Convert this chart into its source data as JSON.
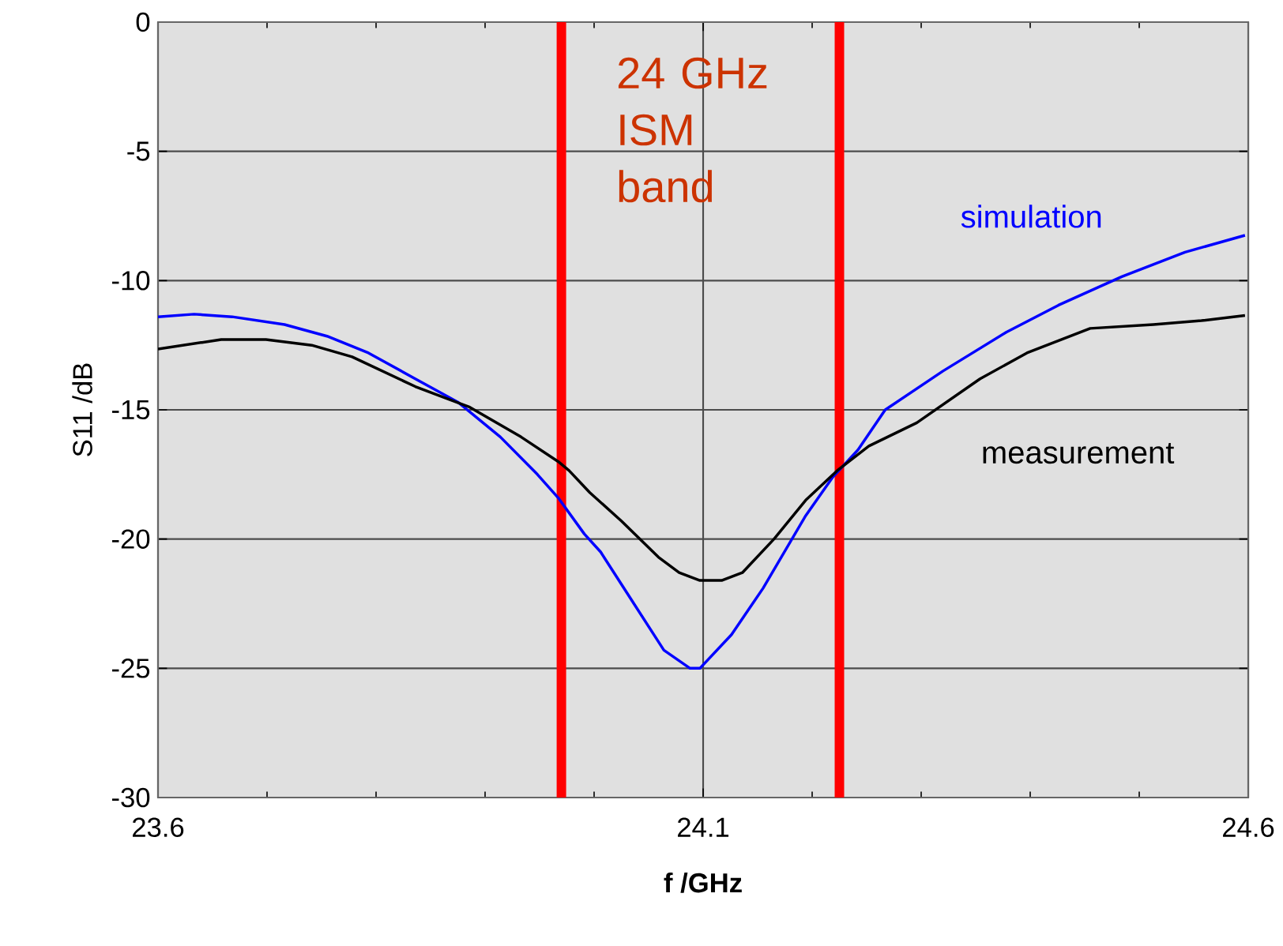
{
  "chart_data": {
    "type": "line",
    "xlabel": "f /GHz",
    "ylabel": "S11 /dB",
    "xlim": [
      23.6,
      24.6
    ],
    "xticks": [
      23.6,
      24.1,
      24.6
    ],
    "ylim": [
      -30,
      0
    ],
    "yticks": [
      -30,
      -25,
      -20,
      -15,
      -10,
      -5,
      0
    ],
    "grid": true,
    "legend": false,
    "marker": "none",
    "line_style": "solid",
    "series": [
      {
        "name": "simulation",
        "color": "#0000ff",
        "x": [
          23.6,
          23.633,
          23.668,
          23.716,
          23.755,
          23.793,
          23.836,
          23.875,
          23.914,
          23.948,
          23.967,
          23.991,
          24.006,
          24.035,
          24.064,
          24.088,
          24.097,
          24.126,
          24.155,
          24.194,
          24.219,
          24.242,
          24.267,
          24.32,
          24.378,
          24.426,
          24.484,
          24.542,
          24.597
        ],
        "values": [
          -11.4,
          -11.3,
          -11.4,
          -11.7,
          -12.15,
          -12.8,
          -13.8,
          -14.7,
          -16.05,
          -17.5,
          -18.4,
          -19.8,
          -20.5,
          -22.4,
          -24.3,
          -25.0,
          -25.0,
          -23.7,
          -21.9,
          -19.1,
          -17.6,
          -16.55,
          -15.0,
          -13.5,
          -12.0,
          -10.95,
          -9.85,
          -8.9,
          -8.25
        ]
      },
      {
        "name": "measurement",
        "color": "#000000",
        "x": [
          23.6,
          23.658,
          23.699,
          23.741,
          23.778,
          23.836,
          23.886,
          23.933,
          23.967,
          23.977,
          23.996,
          24.025,
          24.059,
          24.078,
          24.097,
          24.117,
          24.136,
          24.165,
          24.194,
          24.223,
          24.252,
          24.296,
          24.354,
          24.397,
          24.455,
          24.513,
          24.557,
          24.597
        ],
        "values": [
          -12.65,
          -12.28,
          -12.28,
          -12.5,
          -12.95,
          -14.1,
          -14.9,
          -16.05,
          -17.0,
          -17.35,
          -18.2,
          -19.3,
          -20.7,
          -21.3,
          -21.6,
          -21.6,
          -21.3,
          -20.0,
          -18.5,
          -17.35,
          -16.4,
          -15.5,
          -13.8,
          -12.8,
          -11.85,
          -11.7,
          -11.55,
          -11.35
        ]
      }
    ],
    "ref_lines": [
      {
        "axis": "x",
        "value": 23.97,
        "color": "#ff0000"
      },
      {
        "axis": "x",
        "value": 24.225,
        "color": "#ff0000"
      }
    ],
    "annotations": [
      "24 GHz ISM band"
    ]
  }
}
